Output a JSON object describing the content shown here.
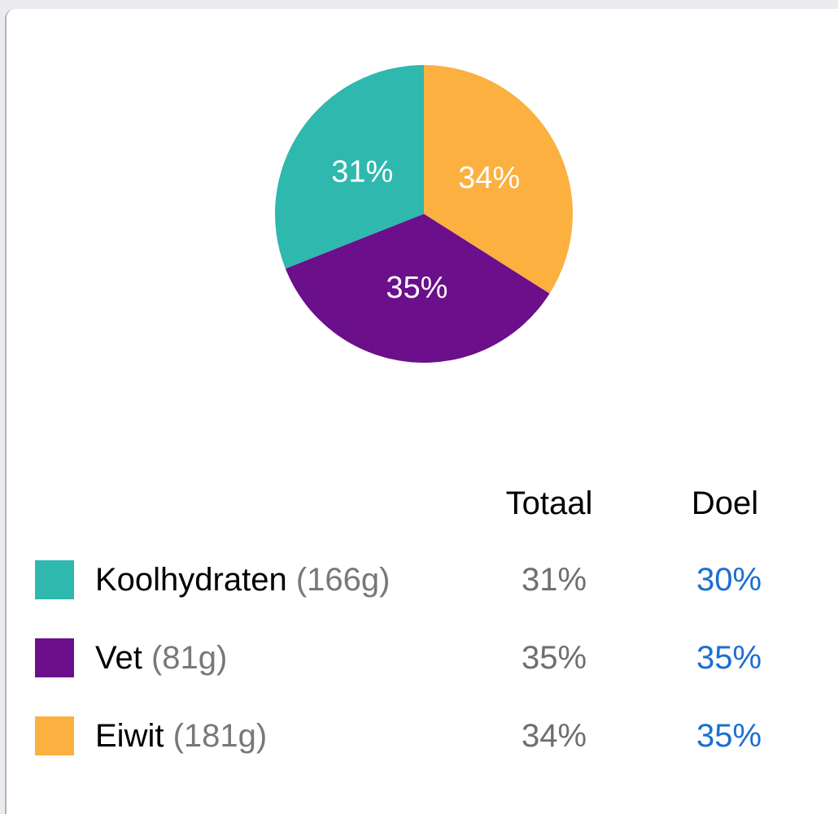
{
  "chart_data": {
    "type": "pie",
    "title": "",
    "start_angle": "12 o'clock",
    "direction": "clockwise",
    "slices": [
      {
        "name": "Eiwit",
        "value": 34,
        "label": "34%",
        "color": "#fbb040"
      },
      {
        "name": "Vet",
        "value": 35,
        "label": "35%",
        "color": "#6b0f8a"
      },
      {
        "name": "Koolhydraten",
        "value": 31,
        "label": "31%",
        "color": "#2eb8ae"
      }
    ],
    "legend_position": "bottom"
  },
  "table": {
    "headers": {
      "total": "Totaal",
      "goal": "Doel"
    },
    "rows": [
      {
        "name": "Koolhydraten",
        "grams": "(166g)",
        "total": "31%",
        "goal": "30%",
        "color": "#2eb8ae"
      },
      {
        "name": "Vet",
        "grams": "(81g)",
        "total": "35%",
        "goal": "35%",
        "color": "#6b0f8a"
      },
      {
        "name": "Eiwit",
        "grams": "(181g)",
        "total": "34%",
        "goal": "35%",
        "color": "#fbb040"
      }
    ]
  },
  "colors": {
    "background": "#ebebf0",
    "card": "#ffffff",
    "goal_text": "#1a6fd1",
    "total_text": "#6e6e73",
    "grams_text": "#78787c"
  }
}
